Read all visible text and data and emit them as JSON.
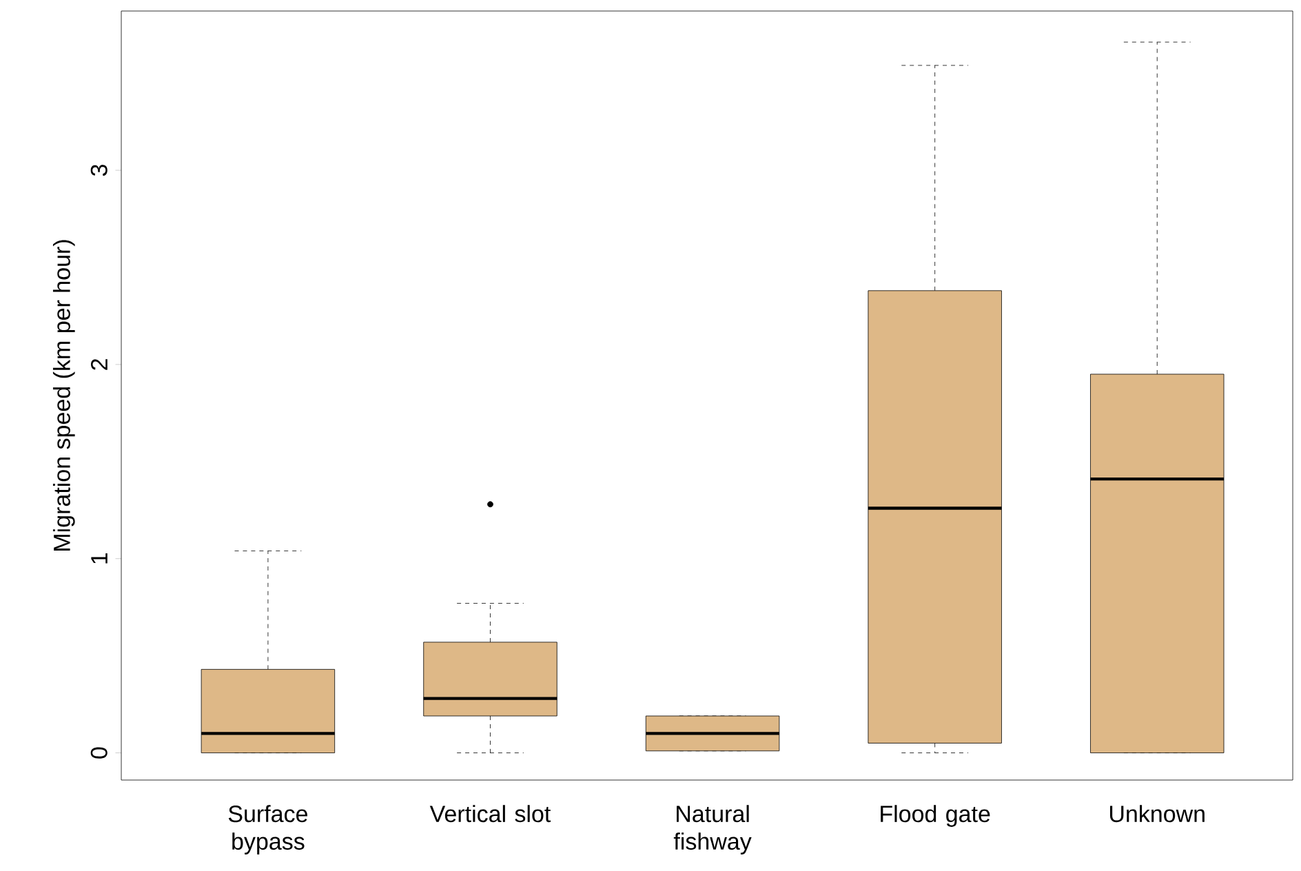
{
  "chart_data": {
    "type": "box",
    "ylabel": "Migration speed (km per hour)",
    "categories": [
      "Surface bypass",
      "Vertical slot",
      "Natural fishway",
      "Flood gate",
      "Unknown"
    ],
    "boxes": [
      {
        "low": 0,
        "q1": 0,
        "median": 0.1,
        "q3": 0.43,
        "high": 1.04
      },
      {
        "low": 0,
        "q1": 0.19,
        "median": 0.28,
        "q3": 0.57,
        "high": 0.77,
        "outliers": [
          1.28
        ]
      },
      {
        "low": 0.01,
        "q1": 0.01,
        "median": 0.1,
        "q3": 0.19,
        "high": 0.19
      },
      {
        "low": 0,
        "q1": 0.05,
        "median": 1.26,
        "q3": 2.38,
        "high": 3.54
      },
      {
        "low": 0,
        "q1": 0,
        "median": 1.41,
        "q3": 1.95,
        "high": 3.66
      }
    ],
    "color": "#deb887",
    "ylim": [
      -0.14,
      3.82
    ],
    "yticks": [
      0,
      1,
      2,
      3
    ]
  }
}
